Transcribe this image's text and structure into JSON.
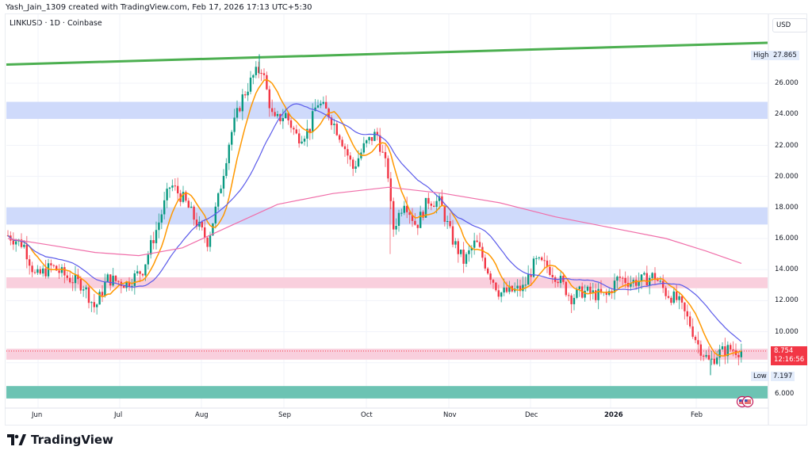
{
  "header": {
    "credit": "Yash_Jain_1309 created with TradingView.com, Feb 17, 2026 17:13 UTC+5:30",
    "symbol_line": "LINKUSD · 1D · Coinbase"
  },
  "price_scale": {
    "currency": "USD",
    "ticks": [
      "26.000",
      "24.000",
      "22.000",
      "20.000",
      "18.000",
      "16.000",
      "14.000",
      "12.000",
      "10.000",
      "6.000"
    ],
    "high_label": "High",
    "high_value": "27.865",
    "low_label": "Low",
    "low_value": "7.197",
    "last_price": "8.754",
    "countdown": "12:16:56"
  },
  "time_scale": {
    "labels": [
      "Jun",
      "Jul",
      "Aug",
      "Sep",
      "Oct",
      "Nov",
      "Dec",
      "2026",
      "Feb"
    ]
  },
  "footer": {
    "brand": "TradingView"
  },
  "colors": {
    "up": "#089981",
    "down": "#f23645",
    "ma_fast": "#ff9800",
    "ma_mid": "#5b5bea",
    "ma_slow": "#f06ea9",
    "trendline": "#4caf50",
    "zone_blue": "#cfdafb",
    "zone_pink": "#f9cfdd",
    "zone_teal": "#6cc3b3"
  },
  "chart_data": {
    "type": "candlestick",
    "title": "LINKUSD · 1D · Coinbase",
    "xlabel": "",
    "ylabel": "USD",
    "ylim": [
      5.2,
      28.5
    ],
    "x_tick_labels": [
      "Jun",
      "Jul",
      "Aug",
      "Sep",
      "Oct",
      "Nov",
      "Dec",
      "2026",
      "Feb"
    ],
    "y_tick_labels": [
      "6.000",
      "10.000",
      "12.000",
      "14.000",
      "16.000",
      "18.000",
      "20.000",
      "22.000",
      "24.000",
      "26.000"
    ],
    "high": 27.865,
    "low": 7.197,
    "last": 8.754,
    "monthly_approx_close": {
      "Jun": 13.4,
      "Jul": 13.2,
      "Aug": 19.5,
      "Sep": 23.0,
      "Oct": 22.3,
      "Nov": 15.5,
      "Dec": 12.8,
      "Jan": 13.3,
      "Feb": 8.75
    },
    "moving_averages": [
      {
        "name": "MA fast (orange)",
        "end_value": 9.4
      },
      {
        "name": "MA mid (blue)",
        "end_value": 10.9
      },
      {
        "name": "MA slow (pink)",
        "end_value": 14.4
      }
    ],
    "zones": [
      {
        "color": "blue",
        "from": 23.7,
        "to": 24.8
      },
      {
        "color": "blue",
        "from": 16.9,
        "to": 18.0
      },
      {
        "color": "pink",
        "from": 12.8,
        "to": 13.5
      },
      {
        "color": "pink",
        "from": 8.2,
        "to": 8.9
      },
      {
        "color": "teal",
        "from": 5.7,
        "to": 6.5
      }
    ],
    "trendline": {
      "from": 27.2,
      "to": 28.6,
      "color": "green"
    },
    "grid": true
  }
}
